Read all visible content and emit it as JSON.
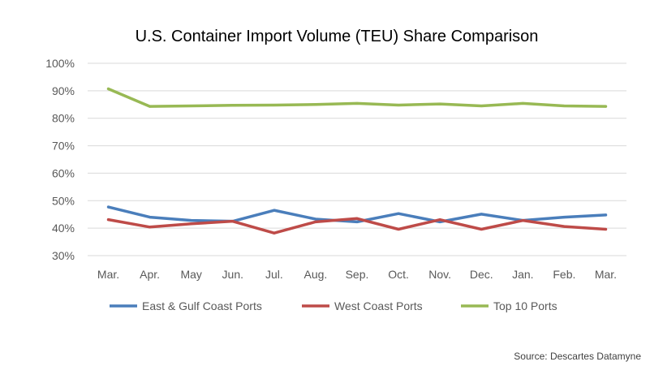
{
  "chart_data": {
    "type": "line",
    "title": "U.S. Container Import Volume (TEU) Share Comparison",
    "xlabel": "",
    "ylabel": "",
    "categories": [
      "Mar.",
      "Apr.",
      "May",
      "Jun.",
      "Jul.",
      "Aug.",
      "Sep.",
      "Oct.",
      "Nov.",
      "Dec.",
      "Jan.",
      "Feb.",
      "Mar."
    ],
    "ylim": [
      30,
      100
    ],
    "yticks": [
      30,
      40,
      50,
      60,
      70,
      80,
      90,
      100
    ],
    "ytick_labels": [
      "30%",
      "40%",
      "50%",
      "60%",
      "70%",
      "80%",
      "90%",
      "100%"
    ],
    "grid": true,
    "legend_position": "bottom",
    "series": [
      {
        "name": "East & Gulf Coast Ports",
        "color": "#4a7ebb",
        "values": [
          47.7,
          44.0,
          42.8,
          42.5,
          46.5,
          43.3,
          42.3,
          45.3,
          42.3,
          45.1,
          42.8,
          44.0,
          44.8
        ]
      },
      {
        "name": "West Coast Ports",
        "color": "#be4b48",
        "values": [
          43.1,
          40.4,
          41.6,
          42.5,
          38.2,
          42.3,
          43.5,
          39.6,
          43.1,
          39.6,
          42.8,
          40.6,
          39.6
        ]
      },
      {
        "name": "Top 10 Ports",
        "color": "#98b954",
        "values": [
          90.7,
          84.3,
          84.5,
          84.7,
          84.8,
          85.0,
          85.4,
          84.8,
          85.2,
          84.5,
          85.4,
          84.5,
          84.3
        ]
      }
    ],
    "source": "Source: Descartes Datamyne"
  }
}
